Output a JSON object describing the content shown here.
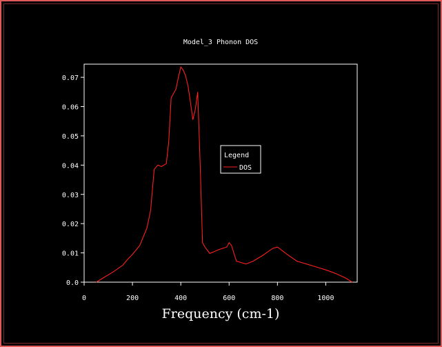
{
  "chart_data": {
    "type": "line",
    "title": "Model_3 Phonon DOS",
    "xlabel": "Frequency (cm-1)",
    "ylabel": "",
    "xlim": [
      0,
      1130
    ],
    "ylim": [
      0,
      0.0745
    ],
    "x_ticks": [
      "0",
      "200",
      "400",
      "600",
      "800",
      "1000"
    ],
    "x_tick_values": [
      0,
      200,
      400,
      600,
      800,
      1000
    ],
    "y_ticks": [
      "0.0",
      "0.01",
      "0.02",
      "0.03",
      "0.04",
      "0.05",
      "0.06",
      "0.07"
    ],
    "y_tick_values": [
      0,
      0.01,
      0.02,
      0.03,
      0.04,
      0.05,
      0.06,
      0.07
    ],
    "legend_title": "Legend",
    "legend_position": "center-right",
    "series": [
      {
        "name": "DOS",
        "color": "#ff2020",
        "x": [
          50,
          80,
          120,
          160,
          180,
          200,
          230,
          260,
          275,
          290,
          305,
          320,
          330,
          340,
          350,
          360,
          380,
          390,
          400,
          410,
          420,
          430,
          440,
          450,
          460,
          470,
          480,
          490,
          500,
          520,
          560,
          590,
          600,
          610,
          630,
          650,
          670,
          700,
          740,
          780,
          800,
          840,
          880,
          920,
          960,
          1000,
          1040,
          1080,
          1110
        ],
        "y": [
          0.0,
          0.0015,
          0.0035,
          0.0058,
          0.0078,
          0.0095,
          0.0125,
          0.0185,
          0.0245,
          0.0385,
          0.04,
          0.0395,
          0.04,
          0.0405,
          0.048,
          0.063,
          0.066,
          0.07,
          0.0735,
          0.0725,
          0.0705,
          0.067,
          0.0615,
          0.0555,
          0.059,
          0.065,
          0.041,
          0.0135,
          0.012,
          0.0098,
          0.0112,
          0.012,
          0.0135,
          0.0125,
          0.0072,
          0.0067,
          0.0062,
          0.0072,
          0.0092,
          0.0115,
          0.012,
          0.0095,
          0.0072,
          0.0062,
          0.0052,
          0.0042,
          0.003,
          0.0015,
          0.0
        ]
      }
    ]
  }
}
